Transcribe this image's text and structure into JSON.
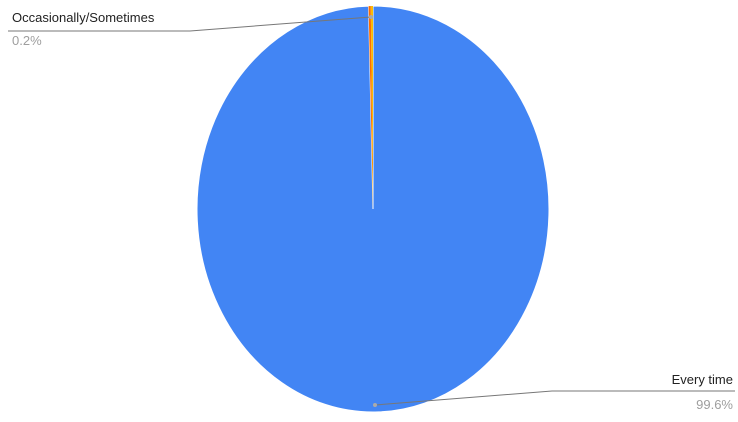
{
  "chart_data": {
    "type": "pie",
    "title": "",
    "slices": [
      {
        "label": "Every time",
        "value": 99.6,
        "value_label": "99.6%",
        "color": "#4285f4"
      },
      {
        "label": "Occasionally/Sometimes",
        "value": 0.2,
        "value_label": "0.2%",
        "color": "#ff6d01"
      },
      {
        "label": "",
        "value": 0.2,
        "value_label": "",
        "color": "#fbbc04"
      }
    ],
    "start_angle_deg": 0,
    "direction": "clockwise",
    "legend": "none",
    "label_style": "callout-lines",
    "colors": {
      "label_text": "#222222",
      "value_text": "#9e9e9e",
      "leader_line": "#777777",
      "slice_border": "#ffffff"
    }
  }
}
